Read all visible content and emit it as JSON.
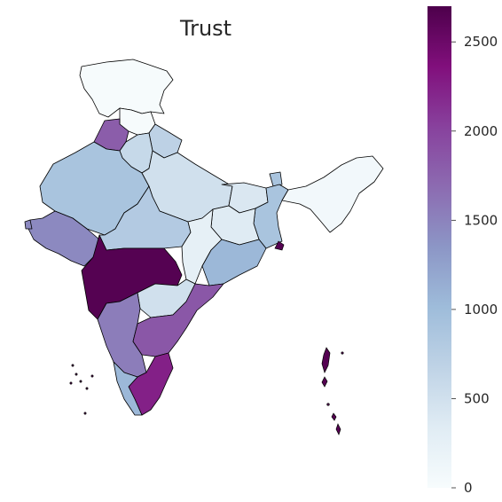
{
  "title": "Trust",
  "colorbar": {
    "min": 0,
    "max": 2700,
    "ticks": [
      {
        "value": 0,
        "label": "0"
      },
      {
        "value": 500,
        "label": "500"
      },
      {
        "value": 1000,
        "label": "1000"
      },
      {
        "value": 1500,
        "label": "1500"
      },
      {
        "value": 2000,
        "label": "2000"
      },
      {
        "value": 2500,
        "label": "2500"
      }
    ],
    "stops": [
      "#f7fcfd",
      "#e0ecf4",
      "#bfd3e6",
      "#9ebcda",
      "#8c96c6",
      "#8c6bb1",
      "#88419d",
      "#810f7c",
      "#4d004b"
    ]
  },
  "regions": [
    {
      "name": "Jammu & Kashmir",
      "value": 20
    },
    {
      "name": "Himachal Pradesh",
      "value": 20
    },
    {
      "name": "Punjab",
      "value": 1800
    },
    {
      "name": "Haryana",
      "value": 600
    },
    {
      "name": "Uttarakhand",
      "value": 700
    },
    {
      "name": "Rajasthan",
      "value": 900
    },
    {
      "name": "Uttar Pradesh",
      "value": 500
    },
    {
      "name": "Bihar",
      "value": 400
    },
    {
      "name": "Gujarat",
      "value": 1450
    },
    {
      "name": "Madhya Pradesh",
      "value": 800
    },
    {
      "name": "Chhattisgarh",
      "value": 250
    },
    {
      "name": "Jharkhand",
      "value": 350
    },
    {
      "name": "West Bengal",
      "value": 900
    },
    {
      "name": "Odisha",
      "value": 1050
    },
    {
      "name": "Maharashtra",
      "value": 2650
    },
    {
      "name": "Telangana",
      "value": 500
    },
    {
      "name": "Andhra Pradesh",
      "value": 1850
    },
    {
      "name": "Karnataka",
      "value": 1550
    },
    {
      "name": "Kerala",
      "value": 1050
    },
    {
      "name": "Tamil Nadu",
      "value": 2250
    },
    {
      "name": "Northeast",
      "value": 80
    },
    {
      "name": "Sikkim",
      "value": 900
    },
    {
      "name": "Islands",
      "value": 2650
    }
  ]
}
